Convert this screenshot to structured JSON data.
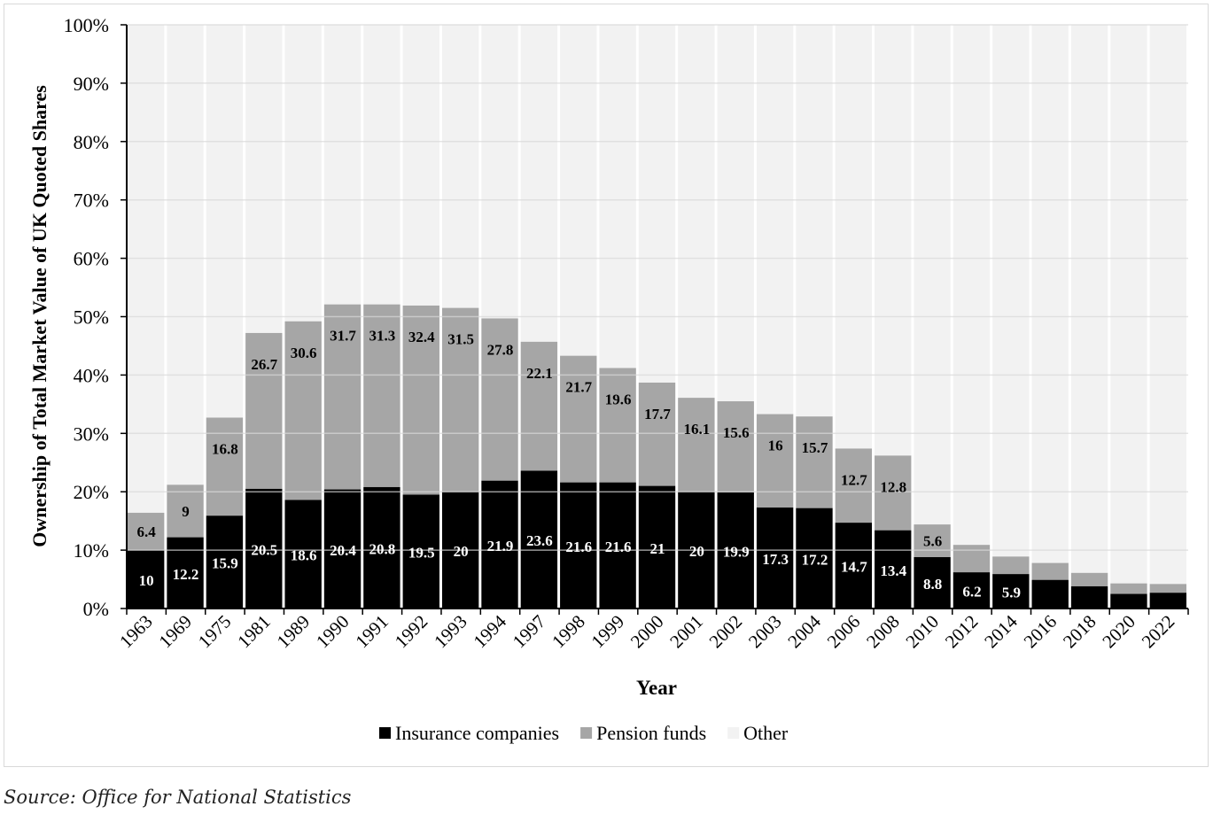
{
  "chart_data": {
    "type": "bar",
    "stacked": true,
    "percent_stacked": true,
    "xlabel": "Year",
    "ylabel": "Ownership of Total Market Value of UK Quoted Shares",
    "ylim": [
      0,
      100
    ],
    "yticks": [
      "0%",
      "10%",
      "20%",
      "30%",
      "40%",
      "50%",
      "60%",
      "70%",
      "80%",
      "90%",
      "100%"
    ],
    "grid": true,
    "legend_position": "bottom",
    "categories": [
      "1963",
      "1969",
      "1975",
      "1981",
      "1989",
      "1990",
      "1991",
      "1992",
      "1993",
      "1994",
      "1997",
      "1998",
      "1999",
      "2000",
      "2001",
      "2002",
      "2003",
      "2004",
      "2006",
      "2008",
      "2010",
      "2012",
      "2014",
      "2016",
      "2018",
      "2020",
      "2022"
    ],
    "series": [
      {
        "name": "Insurance companies",
        "color": "#000000",
        "label_color": "#ffffff",
        "values": [
          10,
          12.2,
          15.9,
          20.5,
          18.6,
          20.4,
          20.8,
          19.5,
          20,
          21.9,
          23.6,
          21.6,
          21.6,
          21,
          20,
          19.9,
          17.3,
          17.2,
          14.7,
          13.4,
          8.8,
          6.2,
          5.9,
          4.9,
          3.8,
          2.5,
          2.7
        ],
        "labels": [
          "10",
          "12.2",
          "15.9",
          "20.5",
          "18.6",
          "20.4",
          "20.8",
          "19.5",
          "20",
          "21.9",
          "23.6",
          "21.6",
          "21.6",
          "21",
          "20",
          "19.9",
          "17.3",
          "17.2",
          "14.7",
          "13.4",
          "8.8",
          "6.2",
          "5.9",
          "",
          "",
          "",
          ""
        ]
      },
      {
        "name": "Pension funds",
        "color": "#a6a6a6",
        "label_color": "#000000",
        "values": [
          6.4,
          9,
          16.8,
          26.7,
          30.6,
          31.7,
          31.3,
          32.4,
          31.5,
          27.8,
          22.1,
          21.7,
          19.6,
          17.7,
          16.1,
          15.6,
          16,
          15.7,
          12.7,
          12.8,
          5.6,
          4.7,
          3.0,
          2.9,
          2.3,
          1.8,
          1.5
        ],
        "labels": [
          "6.4",
          "9",
          "16.8",
          "26.7",
          "30.6",
          "31.7",
          "31.3",
          "32.4",
          "31.5",
          "27.8",
          "22.1",
          "21.7",
          "19.6",
          "17.7",
          "16.1",
          "15.6",
          "16",
          "15.7",
          "12.7",
          "12.8",
          "5.6",
          "",
          "",
          "",
          "",
          "",
          ""
        ]
      },
      {
        "name": "Other",
        "color": "#f2f2f2",
        "label_color": "#000000",
        "values": "remainder to 100%",
        "labels": []
      }
    ]
  },
  "source": "Source: Office for National Statistics"
}
